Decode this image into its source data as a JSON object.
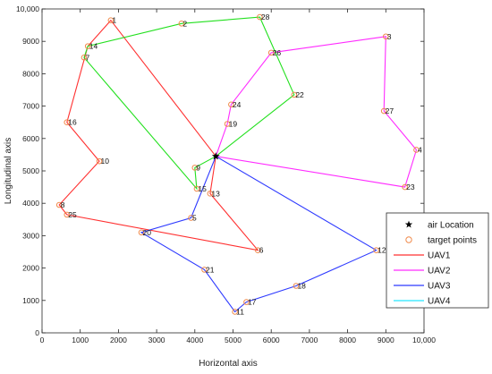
{
  "chart_data": {
    "type": "line",
    "xlabel": "Horizontal axis",
    "ylabel": "Longitudinal axis",
    "xlim": [
      0,
      10000
    ],
    "ylim": [
      0,
      10000
    ],
    "xticks": [
      "0",
      "1000",
      "2000",
      "3000",
      "4000",
      "5000",
      "6000",
      "7000",
      "8000",
      "9000",
      "10,000"
    ],
    "yticks": [
      "0",
      "1000",
      "2000",
      "3000",
      "4000",
      "5000",
      "6000",
      "7000",
      "8000",
      "9000",
      "10,000"
    ],
    "grid": false,
    "legend_position": "bottom-right",
    "colors": {
      "UAV1": "#ff3030",
      "UAV2": "#ff2cff",
      "UAV3": "#2e3aff",
      "UAV4": "#25e6ff",
      "green_route": "#22e01e",
      "target_marker": "#f08a4b",
      "air_location": "#000000"
    },
    "air_location": {
      "x": 4550,
      "y": 5450
    },
    "points": [
      {
        "id": "1",
        "x": 1800,
        "y": 9650
      },
      {
        "id": "2",
        "x": 3650,
        "y": 9550
      },
      {
        "id": "3",
        "x": 9000,
        "y": 9150
      },
      {
        "id": "4",
        "x": 9800,
        "y": 5650
      },
      {
        "id": "5",
        "x": 3900,
        "y": 3550
      },
      {
        "id": "6",
        "x": 5650,
        "y": 2550
      },
      {
        "id": "7",
        "x": 1100,
        "y": 8500
      },
      {
        "id": "8",
        "x": 450,
        "y": 3950
      },
      {
        "id": "9",
        "x": 4000,
        "y": 5100
      },
      {
        "id": "10",
        "x": 1500,
        "y": 5300
      },
      {
        "id": "11",
        "x": 5050,
        "y": 650
      },
      {
        "id": "12",
        "x": 8750,
        "y": 2550
      },
      {
        "id": "13",
        "x": 4400,
        "y": 4300
      },
      {
        "id": "14",
        "x": 1200,
        "y": 8850
      },
      {
        "id": "15",
        "x": 4050,
        "y": 4450
      },
      {
        "id": "16",
        "x": 650,
        "y": 6500
      },
      {
        "id": "17",
        "x": 5350,
        "y": 950
      },
      {
        "id": "18",
        "x": 6650,
        "y": 1450
      },
      {
        "id": "19",
        "x": 4850,
        "y": 6450
      },
      {
        "id": "20",
        "x": 2600,
        "y": 3100
      },
      {
        "id": "21",
        "x": 4250,
        "y": 1950
      },
      {
        "id": "22",
        "x": 6600,
        "y": 7350
      },
      {
        "id": "23",
        "x": 9500,
        "y": 4500
      },
      {
        "id": "24",
        "x": 4950,
        "y": 7050
      },
      {
        "id": "25",
        "x": 650,
        "y": 3650
      },
      {
        "id": "26",
        "x": 6000,
        "y": 8650
      },
      {
        "id": "27",
        "x": 8950,
        "y": 6850
      },
      {
        "id": "28",
        "x": 5700,
        "y": 9750
      }
    ],
    "series": [
      {
        "name": "UAV1",
        "route": [
          "air",
          "1",
          "14",
          "16",
          "10",
          "8",
          "25",
          "6",
          "13",
          "air"
        ]
      },
      {
        "name": "UAV2",
        "route": [
          "air",
          "19",
          "24",
          "26",
          "3",
          "27",
          "4",
          "23",
          "air"
        ]
      },
      {
        "name": "UAV3",
        "route": [
          "air",
          "5",
          "20",
          "21",
          "11",
          "17",
          "18",
          "12",
          "air"
        ]
      },
      {
        "name": "UAV4",
        "route": []
      },
      {
        "name": "",
        "route": [
          "air",
          "9",
          "15",
          "7",
          "14",
          "2",
          "28",
          "22",
          "air"
        ]
      }
    ],
    "legend": [
      "air Location",
      "target points",
      "UAV1",
      "UAV2",
      "UAV3",
      "UAV4"
    ]
  }
}
